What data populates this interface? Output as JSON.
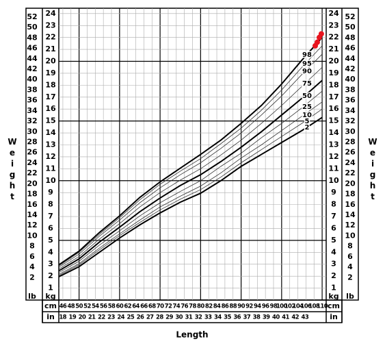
{
  "chart_data": {
    "type": "line",
    "x_label": "Length",
    "y_label": "Weight",
    "x_unit": "cm",
    "x2_unit": "in",
    "y_unit": "kg",
    "y2_unit": "lb",
    "xlim": [
      45,
      111
    ],
    "x2lim": [
      17.6,
      45.2
    ],
    "ylim": [
      0,
      24.45
    ],
    "y2lim": [
      -2.3,
      53.7
    ],
    "xticks": [
      46,
      48,
      50,
      52,
      54,
      56,
      58,
      60,
      62,
      64,
      66,
      68,
      70,
      72,
      74,
      76,
      78,
      80,
      82,
      84,
      86,
      88,
      90,
      92,
      94,
      96,
      98,
      100,
      102,
      104,
      106,
      108,
      110
    ],
    "x2ticks": [
      18,
      19,
      20,
      21,
      22,
      23,
      24,
      25,
      26,
      27,
      28,
      29,
      30,
      31,
      32,
      33,
      34,
      35,
      36,
      37,
      38,
      39,
      40,
      41,
      42,
      43
    ],
    "yticks": [
      1,
      2,
      3,
      4,
      5,
      6,
      7,
      8,
      9,
      10,
      11,
      12,
      13,
      14,
      15,
      16,
      17,
      18,
      19,
      20,
      21,
      22,
      23,
      24
    ],
    "y2ticks": [
      2,
      4,
      6,
      8,
      10,
      12,
      14,
      16,
      18,
      20,
      22,
      24,
      26,
      28,
      30,
      32,
      34,
      36,
      38,
      40,
      42,
      44,
      46,
      48,
      50,
      52
    ],
    "grid": true,
    "x": [
      45,
      50,
      55,
      60,
      65,
      70,
      75,
      80,
      85,
      90,
      95,
      100,
      105,
      110
    ],
    "series": [
      {
        "name": "98",
        "color": "#000",
        "bold": true,
        "values": [
          2.95,
          4.1,
          5.65,
          7.05,
          8.6,
          9.9,
          11.05,
          12.2,
          13.4,
          14.8,
          16.3,
          18.1,
          20.1,
          22.0
        ]
      },
      {
        "name": "95",
        "color": "#333",
        "bold": false,
        "values": [
          2.85,
          4.0,
          5.5,
          6.9,
          8.4,
          9.7,
          10.8,
          11.85,
          13.1,
          14.4,
          15.9,
          17.6,
          19.5,
          21.3
        ]
      },
      {
        "name": "90",
        "color": "#333",
        "bold": false,
        "values": [
          2.75,
          3.85,
          5.35,
          6.7,
          8.15,
          9.4,
          10.5,
          11.5,
          12.7,
          14.0,
          15.5,
          17.1,
          18.9,
          20.6
        ]
      },
      {
        "name": "75",
        "color": "#333",
        "bold": false,
        "values": [
          2.6,
          3.65,
          5.1,
          6.4,
          7.8,
          9.0,
          10.05,
          11.0,
          12.15,
          13.4,
          14.8,
          16.3,
          17.9,
          19.5
        ]
      },
      {
        "name": "50",
        "color": "#000",
        "bold": true,
        "values": [
          2.45,
          3.45,
          4.85,
          6.1,
          7.4,
          8.55,
          9.6,
          10.5,
          11.6,
          12.8,
          14.1,
          15.5,
          16.9,
          18.4
        ]
      },
      {
        "name": "25",
        "color": "#333",
        "bold": false,
        "values": [
          2.3,
          3.25,
          4.6,
          5.8,
          7.05,
          8.15,
          9.1,
          10.0,
          11.2,
          12.3,
          13.6,
          14.8,
          16.1,
          17.5
        ]
      },
      {
        "name": "10",
        "color": "#333",
        "bold": false,
        "values": [
          2.15,
          3.05,
          4.35,
          5.55,
          6.7,
          7.8,
          8.7,
          9.55,
          10.65,
          11.9,
          13.0,
          14.2,
          15.4,
          16.6
        ]
      },
      {
        "name": "5",
        "color": "#333",
        "bold": false,
        "values": [
          2.05,
          2.95,
          4.2,
          5.4,
          6.5,
          7.55,
          8.45,
          9.25,
          10.3,
          11.5,
          12.6,
          13.7,
          14.8,
          16.0
        ]
      },
      {
        "name": "2",
        "color": "#000",
        "bold": true,
        "values": [
          1.95,
          2.8,
          4.0,
          5.2,
          6.3,
          7.3,
          8.2,
          8.95,
          10.0,
          11.2,
          12.2,
          13.2,
          14.2,
          15.3
        ]
      }
    ],
    "markers": {
      "color": "#e8141e",
      "x": [
        108.3,
        108.8,
        109.3,
        109.8
      ],
      "values": [
        21.3,
        21.6,
        22.0,
        22.3
      ]
    }
  }
}
